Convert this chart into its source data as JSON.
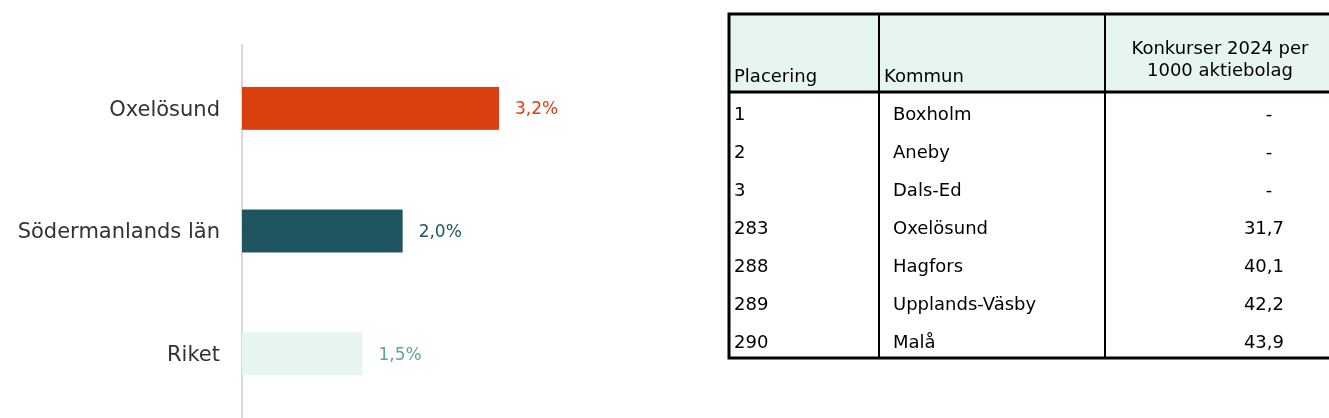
{
  "chart_data": [
    {
      "type": "bar",
      "orientation": "horizontal",
      "categories": [
        "Oxelösund",
        "Södermanlands län",
        "Riket"
      ],
      "values": [
        3.2,
        2.0,
        1.5
      ],
      "colors": [
        "#d9400f",
        "#1f5560",
        "#e6f4f2"
      ],
      "value_labels": [
        "3,2%",
        "2,0%",
        "1,5%"
      ]
    },
    {
      "type": "other",
      "annotations": [
        "Placering",
        "Kommun",
        "Konkurser 2024 per 1000 aktiebolag"
      ],
      "y_categories": [
        "1",
        "2",
        "3",
        "283",
        "288",
        "289",
        "290"
      ],
      "categories": [
        "Boxholm",
        "Aneby",
        "Dals-Ed",
        "Oxelösund",
        "Hagfors",
        "Upplands-Väsby",
        "Malå"
      ],
      "values": [
        null,
        null,
        null,
        31.7,
        40.1,
        42.2,
        43.9
      ],
      "value_labels": [
        "-",
        "-",
        "-",
        "31,7",
        "40,1",
        "42,2",
        "43,9"
      ]
    }
  ]
}
